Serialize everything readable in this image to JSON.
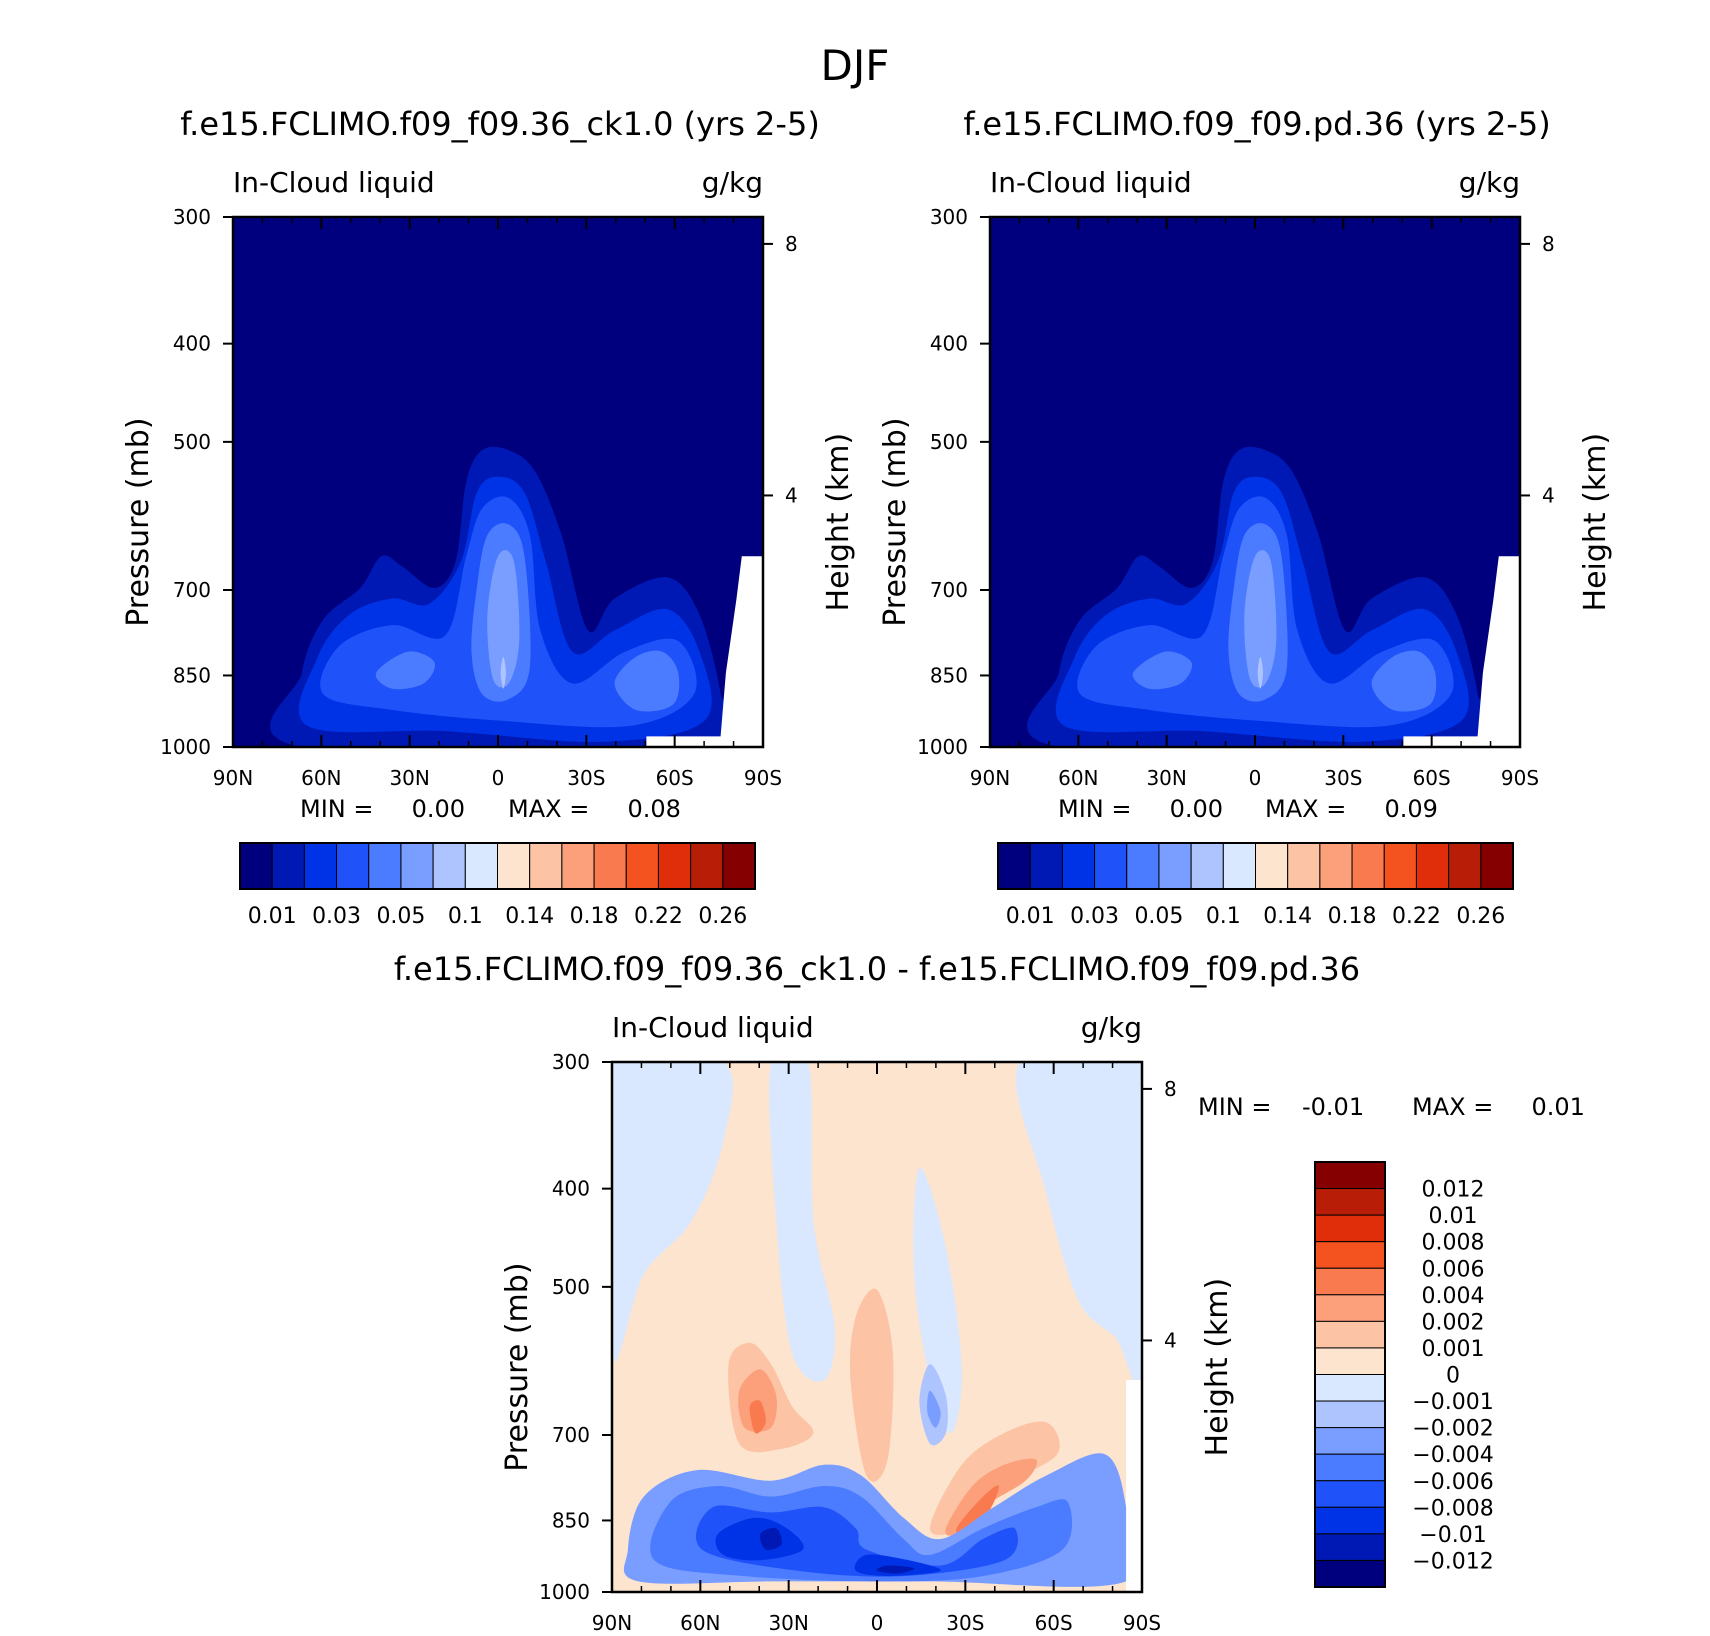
{
  "figure_title": "DJF",
  "chart_data": [
    {
      "type": "contour",
      "title": "f.e15.FCLIMO.f09_f09.36_ck1.0 (yrs 2-5)",
      "left_label": "In-Cloud liquid",
      "right_label": "g/kg",
      "ylabel": "Pressure (mb)",
      "ylabel_right": "Height (km)",
      "x_ticks": [
        "90N",
        "60N",
        "30N",
        "0",
        "30S",
        "60S",
        "90S"
      ],
      "y_ticks": [
        300,
        400,
        500,
        700,
        850,
        1000
      ],
      "y_right_ticks": [
        8,
        4
      ],
      "ylim": [
        1000,
        300
      ],
      "min_text": "MIN =     0.00",
      "max_text": "MAX =     0.08",
      "min": 0.0,
      "max": 0.08,
      "colorbar_labels": [
        "0.01",
        "0.03",
        "0.05",
        "0.1",
        "0.14",
        "0.18",
        "0.22",
        "0.26"
      ],
      "colors": [
        "#00007f",
        "#0019b4",
        "#0033e6",
        "#2052fa",
        "#4b7cff",
        "#7a9eff",
        "#adc4ff",
        "#d9e7ff",
        "#fde4cf",
        "#fcc3a5",
        "#fba07b",
        "#f97a4f",
        "#f4521f",
        "#e02d0a",
        "#b81d07",
        "#850000"
      ]
    },
    {
      "type": "contour",
      "title": "f.e15.FCLIMO.f09_f09.pd.36 (yrs 2-5)",
      "left_label": "In-Cloud liquid",
      "right_label": "g/kg",
      "ylabel": "Pressure (mb)",
      "ylabel_right": "Height (km)",
      "x_ticks": [
        "90N",
        "60N",
        "30N",
        "0",
        "30S",
        "60S",
        "90S"
      ],
      "y_ticks": [
        300,
        400,
        500,
        700,
        850,
        1000
      ],
      "y_right_ticks": [
        8,
        4
      ],
      "ylim": [
        1000,
        300
      ],
      "min_text": "MIN =     0.00",
      "max_text": "MAX =     0.09",
      "min": 0.0,
      "max": 0.09,
      "colorbar_labels": [
        "0.01",
        "0.03",
        "0.05",
        "0.1",
        "0.14",
        "0.18",
        "0.22",
        "0.26"
      ],
      "colors": [
        "#00007f",
        "#0019b4",
        "#0033e6",
        "#2052fa",
        "#4b7cff",
        "#7a9eff",
        "#adc4ff",
        "#d9e7ff",
        "#fde4cf",
        "#fcc3a5",
        "#fba07b",
        "#f97a4f",
        "#f4521f",
        "#e02d0a",
        "#b81d07",
        "#850000"
      ]
    },
    {
      "type": "contour",
      "title": "f.e15.FCLIMO.f09_f09.36_ck1.0 - f.e15.FCLIMO.f09_f09.pd.36",
      "left_label": "In-Cloud liquid",
      "right_label": "g/kg",
      "ylabel": "Pressure (mb)",
      "ylabel_right": "Height (km)",
      "x_ticks": [
        "90N",
        "60N",
        "30N",
        "0",
        "30S",
        "60S",
        "90S"
      ],
      "y_ticks": [
        300,
        400,
        500,
        700,
        850,
        1000
      ],
      "y_right_ticks": [
        8,
        4
      ],
      "ylim": [
        1000,
        300
      ],
      "min_text": "MIN =    -0.01",
      "max_text": "MAX =     0.01",
      "min": -0.01,
      "max": 0.01,
      "colorbar_labels": [
        "0.012",
        "0.01",
        "0.008",
        "0.006",
        "0.004",
        "0.002",
        "0.001",
        "0",
        "-0.001",
        "-0.002",
        "-0.004",
        "-0.006",
        "-0.008",
        "-0.01",
        "-0.012"
      ],
      "colors": [
        "#850000",
        "#b81d07",
        "#e02d0a",
        "#f4521f",
        "#f97a4f",
        "#fba07b",
        "#fcc3a5",
        "#fde4cf",
        "#d9e7ff",
        "#adc4ff",
        "#7a9eff",
        "#4b7cff",
        "#2052fa",
        "#0033e6",
        "#0019b4",
        "#00007f"
      ]
    }
  ]
}
